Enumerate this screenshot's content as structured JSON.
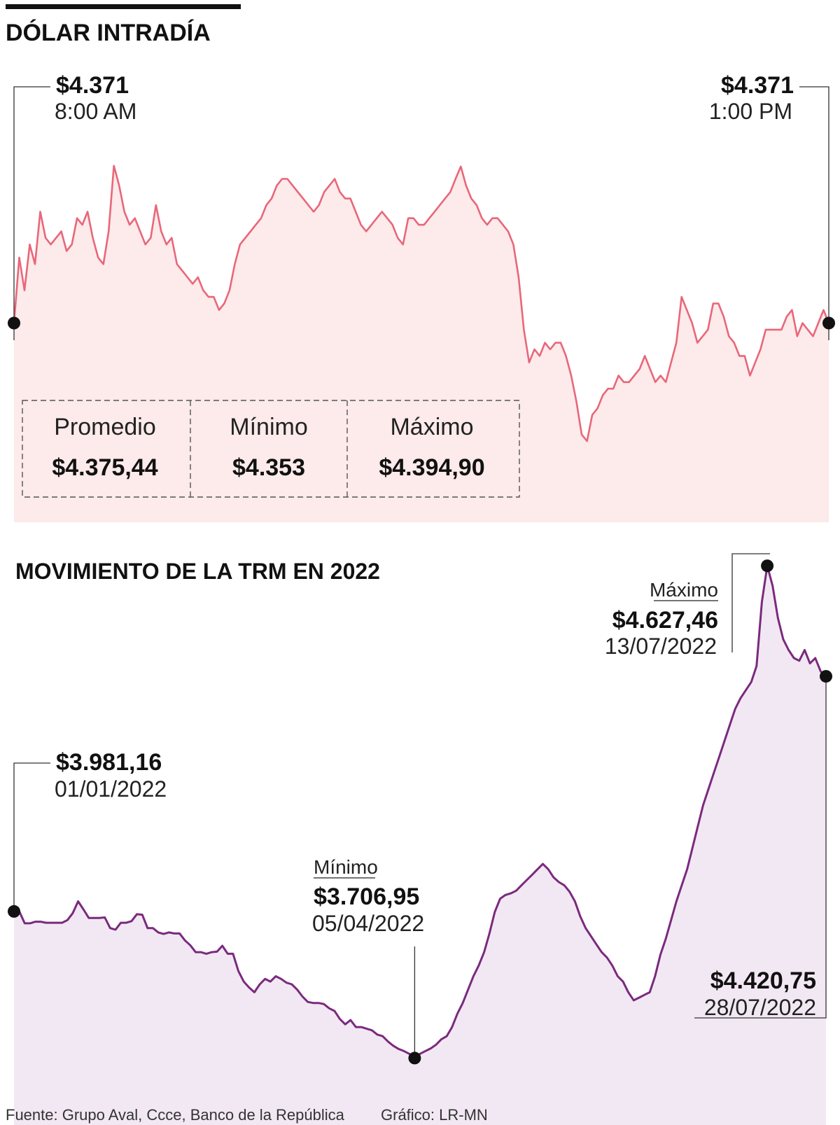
{
  "chart_data": [
    {
      "type": "area",
      "title": "DÓLAR INTRADÍA",
      "x_start": "8:00 AM",
      "x_end": "1:00 PM",
      "start": {
        "value": "$4.371",
        "time": "8:00 AM"
      },
      "end": {
        "value": "$4.371",
        "time": "1:00 PM"
      },
      "stats": {
        "promedio_label": "Promedio",
        "promedio_value": "$4.375,44",
        "minimo_label": "Mínimo",
        "minimo_value": "$4.353",
        "maximo_label": "Máximo",
        "maximo_value": "$4.394,90"
      },
      "ylim": [
        4345,
        4400
      ],
      "values": [
        4371,
        4381,
        4376,
        4383,
        4380,
        4388,
        4384,
        4383,
        4384,
        4385,
        4382,
        4383,
        4387,
        4386,
        4388,
        4384,
        4381,
        4380,
        4385,
        4395,
        4392,
        4388,
        4386,
        4387,
        4385,
        4383,
        4384,
        4389,
        4385,
        4383,
        4384,
        4380,
        4379,
        4378,
        4377,
        4378,
        4376,
        4375,
        4375,
        4373,
        4374,
        4376,
        4380,
        4383,
        4384,
        4385,
        4386,
        4387,
        4389,
        4390,
        4392,
        4393,
        4393,
        4392,
        4391,
        4390,
        4389,
        4388,
        4389,
        4391,
        4392,
        4393,
        4391,
        4390,
        4390,
        4388,
        4386,
        4385,
        4386,
        4387,
        4388,
        4387,
        4386,
        4384,
        4383,
        4387,
        4387,
        4386,
        4386,
        4387,
        4388,
        4389,
        4390,
        4391,
        4393,
        4394.9,
        4392,
        4390,
        4389,
        4387,
        4386,
        4387,
        4387,
        4386,
        4385,
        4383,
        4378,
        4370,
        4365,
        4367,
        4366,
        4368,
        4367,
        4368,
        4368,
        4366,
        4363,
        4359,
        4354,
        4353,
        4357,
        4358,
        4360,
        4361,
        4361,
        4363,
        4362,
        4362,
        4363,
        4364,
        4366,
        4364,
        4362,
        4363,
        4362,
        4365,
        4368,
        4375,
        4373,
        4371,
        4368,
        4369,
        4370,
        4374,
        4374,
        4372,
        4369,
        4368,
        4366,
        4366,
        4363,
        4365,
        4367,
        4370,
        4370,
        4370,
        4370,
        4372,
        4373,
        4369,
        4371,
        4370,
        4369,
        4371,
        4373,
        4371
      ]
    },
    {
      "type": "area",
      "title": "MOVIMIENTO DE LA TRM EN 2022",
      "ylim": [
        3680,
        4650
      ],
      "values": [
        3981.16,
        3981.16,
        3959,
        3959,
        3962,
        3962,
        3960,
        3960,
        3960,
        3960,
        3965,
        3978,
        4000,
        3985,
        3969,
        3969,
        3969,
        3970,
        3950,
        3947,
        3960,
        3960,
        3963,
        3976,
        3975,
        3950,
        3950,
        3942,
        3939,
        3942,
        3940,
        3940,
        3927,
        3918,
        3905,
        3905,
        3902,
        3905,
        3906,
        3917,
        3902,
        3902,
        3870,
        3850,
        3839,
        3830,
        3845,
        3855,
        3850,
        3860,
        3855,
        3848,
        3845,
        3835,
        3822,
        3812,
        3810,
        3810,
        3808,
        3800,
        3795,
        3780,
        3770,
        3778,
        3765,
        3765,
        3762,
        3759,
        3751,
        3748,
        3738,
        3730,
        3724,
        3720,
        3715,
        3706.95,
        3715,
        3720,
        3725,
        3732,
        3742,
        3748,
        3765,
        3790,
        3810,
        3835,
        3860,
        3880,
        3905,
        3940,
        3980,
        4005,
        4012,
        4015,
        4020,
        4030,
        4040,
        4050,
        4060,
        4070,
        4060,
        4045,
        4036,
        4030,
        4018,
        4000,
        3972,
        3950,
        3935,
        3920,
        3905,
        3895,
        3880,
        3860,
        3850,
        3830,
        3815,
        3820,
        3825,
        3830,
        3860,
        3900,
        3930,
        3965,
        4000,
        4030,
        4060,
        4100,
        4140,
        4180,
        4210,
        4240,
        4270,
        4300,
        4330,
        4360,
        4380,
        4395,
        4410,
        4440,
        4560,
        4627.46,
        4590,
        4530,
        4490,
        4470,
        4455,
        4450,
        4470,
        4445,
        4455,
        4430,
        4420.75
      ],
      "minimum": {
        "label": "Mínimo",
        "value": "$3.706,95",
        "date": "05/04/2022"
      },
      "maximum": {
        "label": "Máximo",
        "value": "$4.627,46",
        "date": "13/07/2022"
      },
      "start": {
        "value": "$3.981,16",
        "date": "01/01/2022"
      },
      "end": {
        "value": "$4.420,75",
        "date": "28/07/2022"
      }
    }
  ],
  "footer": {
    "source": "Fuente: Grupo Aval, Ccce, Banco de la República",
    "credit": "Gráfico: LR-MN"
  },
  "colors": {
    "line1": "#e8677a",
    "fill1": "#fdeaea",
    "line2": "#7a2a7d",
    "fill2": "#f2e8f3",
    "dot": "#111111",
    "leader": "#333333"
  }
}
